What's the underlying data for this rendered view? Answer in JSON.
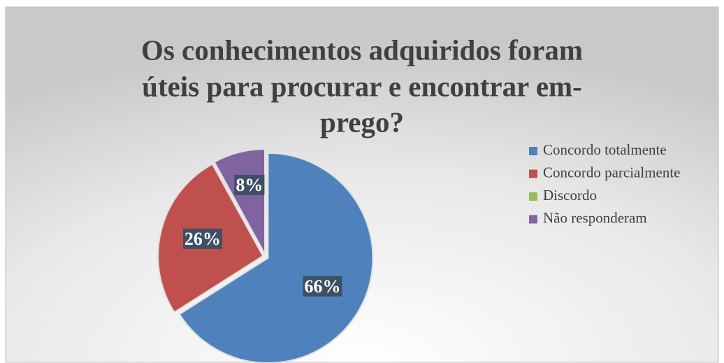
{
  "chart_data": {
    "type": "pie",
    "title": [
      "Os conhecimentos adquiridos foram",
      "úteis para procurar e encontrar em-",
      "prego?"
    ],
    "categories": [
      "Concordo totalmente",
      "Concordo parcialmente",
      "Discordo",
      "Não responderam"
    ],
    "values": [
      66,
      26,
      0,
      8
    ],
    "value_labels": [
      "66%",
      "26%",
      null,
      "8%"
    ],
    "colors": [
      "#4f81bd",
      "#c0504d",
      "#9bbb59",
      "#8064a2"
    ],
    "legend": "right"
  }
}
